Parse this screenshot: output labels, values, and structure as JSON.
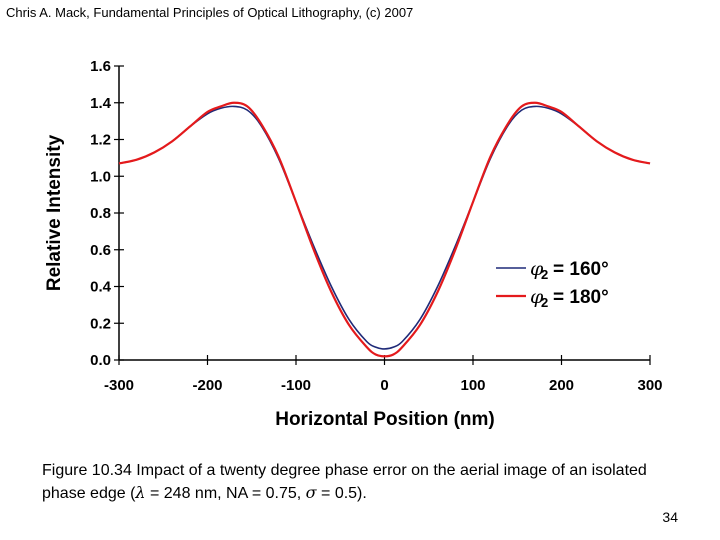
{
  "header": {
    "text": "Chris A. Mack, Fundamental Principles of Optical Lithography, (c) 2007"
  },
  "caption": {
    "part1": "Figure 10.34  Impact of a twenty degree phase error on the aerial image of an isolated phase edge (",
    "lambda_symbol": "λ",
    "part2": " = 248 nm, NA = 0.75, ",
    "sigma_symbol": "σ",
    "part3": " = 0.5)."
  },
  "page_number": "34",
  "colors": {
    "series_160": "#1f2a78",
    "series_180": "#e41a1c",
    "axis": "#000000"
  },
  "chart_data": {
    "type": "line",
    "title": "",
    "xlabel": "Horizontal Position (nm)",
    "ylabel": "Relative Intensity",
    "xlim": [
      -300,
      300
    ],
    "ylim": [
      0,
      1.6
    ],
    "xticks": [
      -300,
      -200,
      -100,
      0,
      100,
      200,
      300
    ],
    "xtick_labels": [
      "-300",
      "-200",
      "-100",
      "0",
      "100",
      "200",
      "300"
    ],
    "yticks": [
      0,
      0.2,
      0.4,
      0.6,
      0.8,
      1.0,
      1.2,
      1.4,
      1.6
    ],
    "ytick_labels": [
      "0.0",
      "0.2",
      "0.4",
      "0.6",
      "0.8",
      "1.0",
      "1.2",
      "1.4",
      "1.6"
    ],
    "grid": false,
    "legend_position": "right",
    "x": [
      -300,
      -280,
      -260,
      -240,
      -220,
      -200,
      -185,
      -170,
      -155,
      -140,
      -120,
      -100,
      -80,
      -60,
      -40,
      -20,
      -10,
      0,
      10,
      20,
      40,
      60,
      80,
      100,
      120,
      140,
      155,
      170,
      185,
      200,
      220,
      240,
      260,
      280,
      300
    ],
    "series": [
      {
        "name": "= 160°",
        "label_symbol": "φ",
        "label_sub": "2",
        "color": "#1f2a78",
        "values": [
          1.07,
          1.09,
          1.13,
          1.19,
          1.27,
          1.34,
          1.37,
          1.38,
          1.36,
          1.28,
          1.1,
          0.86,
          0.62,
          0.4,
          0.22,
          0.1,
          0.07,
          0.06,
          0.07,
          0.1,
          0.22,
          0.4,
          0.62,
          0.86,
          1.1,
          1.28,
          1.36,
          1.38,
          1.37,
          1.34,
          1.27,
          1.19,
          1.13,
          1.09,
          1.07
        ]
      },
      {
        "name": "= 180°",
        "label_symbol": "φ",
        "label_sub": "2",
        "color": "#e41a1c",
        "values": [
          1.07,
          1.09,
          1.13,
          1.19,
          1.27,
          1.35,
          1.38,
          1.4,
          1.38,
          1.29,
          1.11,
          0.86,
          0.6,
          0.37,
          0.19,
          0.07,
          0.03,
          0.02,
          0.03,
          0.07,
          0.19,
          0.37,
          0.6,
          0.86,
          1.11,
          1.29,
          1.38,
          1.4,
          1.38,
          1.35,
          1.27,
          1.19,
          1.13,
          1.09,
          1.07
        ]
      }
    ]
  }
}
